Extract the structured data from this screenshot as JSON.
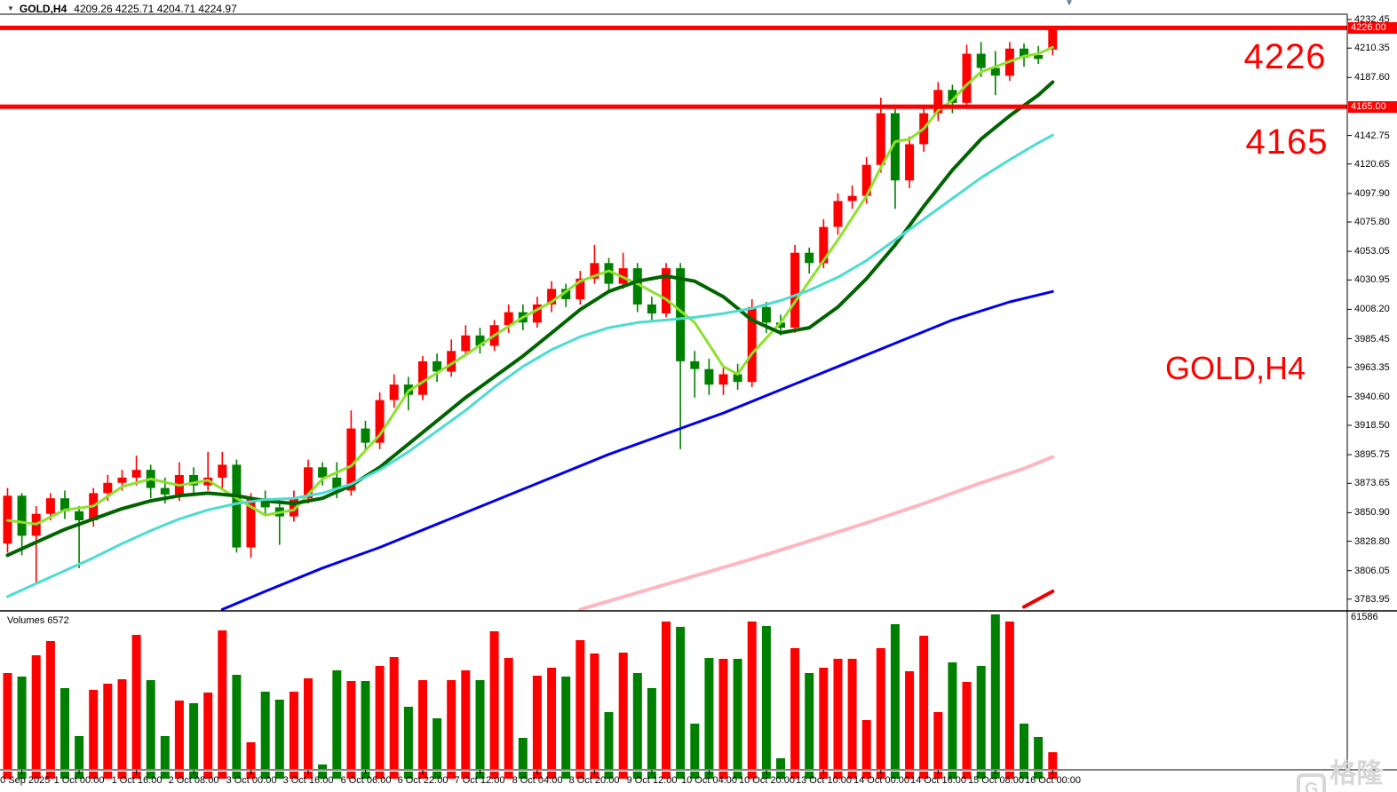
{
  "window": {
    "dropdown_icon": "triangle-down-icon",
    "title_symbol": "GOLD,H4",
    "title_ohlc": "4209.26 4225.71 4204.71 4224.97"
  },
  "volume_pane": {
    "label": "Volumes 6572",
    "axis_max_label": "61586"
  },
  "annotations": {
    "upper_level_label": "4226",
    "lower_level_label": "4165",
    "watermark_symbol": "GOLD,H4",
    "brand_watermark": "格隆汇",
    "brand_logo_glyph": "G"
  },
  "colors": {
    "up": "#ff0000",
    "down": "#008000",
    "level_line": "#ff0000",
    "tag_bg": "#ff0000",
    "tag_text": "#ffffff",
    "axis_text": "#000000",
    "ma_fast": "#8ce12d",
    "ma_mid": "#006400",
    "ma_slow": "#4cdcd2",
    "ma_long": "#0000ee",
    "ma_pink": "#ffb6c1",
    "ma_red": "#ee0000"
  },
  "chart_data": {
    "type": "candlestick",
    "symbol": "GOLD",
    "timeframe": "H4",
    "title": "GOLD,H4 4209.26 4225.71 4204.71 4224.97",
    "last_bar_ohlc": {
      "open": 4209.26,
      "high": 4225.71,
      "low": 4204.71,
      "close": 4224.97
    },
    "last_volume": 6572,
    "levels": [
      {
        "price": 4226,
        "label": "4226"
      },
      {
        "price": 4165,
        "label": "4165"
      }
    ],
    "y_axis": {
      "ticks": [
        4232.45,
        4210.35,
        4187.6,
        4142.75,
        4120.65,
        4097.9,
        4075.8,
        4053.05,
        4030.95,
        4008.2,
        3985.45,
        3963.35,
        3940.6,
        3918.5,
        3895.75,
        3873.65,
        3850.9,
        3828.8,
        3806.05,
        3783.95
      ],
      "tagged_prices": [
        4226.0,
        4165.0
      ],
      "volume_max": 61586
    },
    "x_axis": {
      "labels": [
        "30 Sep 2025",
        "1 Oct 00:00",
        "1 Oct 16:00",
        "2 Oct 08:00",
        "3 Oct 00:00",
        "3 Oct 16:00",
        "6 Oct 06:00",
        "6 Oct 22:00",
        "7 Oct 12:00",
        "8 Oct 04:00",
        "8 Oct 20:00",
        "9 Oct 12:00",
        "10 Oct 04:00",
        "10 Oct 20:00",
        "13 Oct 10:00",
        "14 Oct 00:00",
        "14 Oct 16:00",
        "15 Oct 08:00",
        "16 Oct 00:00"
      ],
      "first_label_candle_index": 1,
      "candles_per_label": 4
    },
    "ohlc": [
      [
        3827,
        3870,
        3820,
        3864
      ],
      [
        3864,
        3866,
        3818,
        3833
      ],
      [
        3833,
        3856,
        3797,
        3850
      ],
      [
        3850,
        3866,
        3845,
        3862
      ],
      [
        3862,
        3868,
        3846,
        3852
      ],
      [
        3852,
        3856,
        3808,
        3845
      ],
      [
        3845,
        3870,
        3840,
        3866
      ],
      [
        3866,
        3880,
        3860,
        3874
      ],
      [
        3874,
        3884,
        3868,
        3878
      ],
      [
        3878,
        3895,
        3872,
        3884
      ],
      [
        3884,
        3888,
        3862,
        3870
      ],
      [
        3870,
        3878,
        3858,
        3865
      ],
      [
        3865,
        3890,
        3860,
        3880
      ],
      [
        3880,
        3886,
        3866,
        3872
      ],
      [
        3872,
        3898,
        3868,
        3878
      ],
      [
        3878,
        3898,
        3868,
        3888
      ],
      [
        3888,
        3892,
        3820,
        3824
      ],
      [
        3824,
        3866,
        3816,
        3862
      ],
      [
        3862,
        3868,
        3850,
        3855
      ],
      [
        3855,
        3860,
        3826,
        3848
      ],
      [
        3848,
        3868,
        3844,
        3862
      ],
      [
        3862,
        3892,
        3858,
        3886
      ],
      [
        3886,
        3890,
        3872,
        3878
      ],
      [
        3878,
        3890,
        3862,
        3868
      ],
      [
        3868,
        3930,
        3864,
        3916
      ],
      [
        3916,
        3922,
        3898,
        3905
      ],
      [
        3905,
        3944,
        3900,
        3938
      ],
      [
        3938,
        3958,
        3932,
        3950
      ],
      [
        3950,
        3956,
        3930,
        3942
      ],
      [
        3942,
        3972,
        3938,
        3968
      ],
      [
        3968,
        3974,
        3952,
        3960
      ],
      [
        3960,
        3985,
        3956,
        3976
      ],
      [
        3976,
        3996,
        3972,
        3988
      ],
      [
        3988,
        3994,
        3974,
        3980
      ],
      [
        3980,
        4000,
        3976,
        3996
      ],
      [
        3996,
        4012,
        3990,
        4006
      ],
      [
        4006,
        4012,
        3992,
        3998
      ],
      [
        3998,
        4018,
        3994,
        4012
      ],
      [
        4012,
        4030,
        4006,
        4024
      ],
      [
        4024,
        4028,
        4010,
        4016
      ],
      [
        4016,
        4038,
        4012,
        4032
      ],
      [
        4032,
        4058,
        4028,
        4044
      ],
      [
        4044,
        4048,
        4022,
        4028
      ],
      [
        4028,
        4052,
        4024,
        4040
      ],
      [
        4040,
        4044,
        4006,
        4012
      ],
      [
        4012,
        4018,
        4000,
        4005
      ],
      [
        4005,
        4044,
        4002,
        4040
      ],
      [
        4040,
        4044,
        3900,
        3968
      ],
      [
        3968,
        3976,
        3940,
        3962
      ],
      [
        3962,
        3970,
        3942,
        3950
      ],
      [
        3950,
        3964,
        3942,
        3958
      ],
      [
        3958,
        3966,
        3946,
        3952
      ],
      [
        3952,
        4016,
        3948,
        4010
      ],
      [
        4010,
        4014,
        3990,
        3998
      ],
      [
        3998,
        4004,
        3988,
        3994
      ],
      [
        3994,
        4058,
        3990,
        4052
      ],
      [
        4052,
        4056,
        4036,
        4044
      ],
      [
        4044,
        4078,
        4040,
        4072
      ],
      [
        4072,
        4098,
        4066,
        4092
      ],
      [
        4092,
        4104,
        4086,
        4096
      ],
      [
        4096,
        4126,
        4090,
        4120
      ],
      [
        4120,
        4172,
        4114,
        4160
      ],
      [
        4160,
        4166,
        4086,
        4108
      ],
      [
        4108,
        4142,
        4102,
        4136
      ],
      [
        4136,
        4166,
        4130,
        4160
      ],
      [
        4160,
        4184,
        4154,
        4178
      ],
      [
        4178,
        4182,
        4160,
        4168
      ],
      [
        4168,
        4213,
        4164,
        4206
      ],
      [
        4206,
        4215,
        4188,
        4195
      ],
      [
        4195,
        4208,
        4174,
        4189
      ],
      [
        4189,
        4215,
        4185,
        4210
      ],
      [
        4210,
        4214,
        4196,
        4203
      ],
      [
        4205,
        4212,
        4198,
        4202
      ],
      [
        4209.26,
        4225.71,
        4204.71,
        4224.97
      ]
    ],
    "volumes": [
      37800,
      36400,
      44800,
      50400,
      31850,
      12950,
      31150,
      33600,
      35350,
      52850,
      35000,
      12950,
      26950,
      25900,
      30100,
      54600,
      37100,
      10500,
      30450,
      27300,
      30450,
      35700,
      1750,
      38850,
      34650,
      34650,
      40600,
      44100,
      24500,
      35000,
      19950,
      35000,
      38850,
      35000,
      54250,
      43750,
      12250,
      36750,
      39900,
      36400,
      50750,
      45500,
      22400,
      45850,
      37800,
      31850,
      58100,
      56000,
      17850,
      43750,
      43400,
      43400,
      58100,
      56350,
      4200,
      47600,
      37800,
      39900,
      43400,
      43400,
      19250,
      47600,
      57050,
      38500,
      52500,
      22400,
      42000,
      34300,
      40600,
      60900,
      58100,
      17850,
      12600,
      6572
    ],
    "ma_lines": [
      {
        "name": "ma-fast-lightgreen",
        "color": "#8ce12d",
        "width": 3,
        "points": [
          [
            0,
            3845
          ],
          [
            2,
            3842
          ],
          [
            4,
            3853
          ],
          [
            6,
            3856
          ],
          [
            8,
            3871
          ],
          [
            10,
            3877
          ],
          [
            12,
            3872
          ],
          [
            14,
            3876
          ],
          [
            16,
            3862
          ],
          [
            18,
            3849
          ],
          [
            20,
            3853
          ],
          [
            22,
            3877
          ],
          [
            24,
            3887
          ],
          [
            26,
            3911
          ],
          [
            28,
            3945
          ],
          [
            30,
            3959
          ],
          [
            32,
            3973
          ],
          [
            34,
            3988
          ],
          [
            36,
            4002
          ],
          [
            38,
            4014
          ],
          [
            40,
            4030
          ],
          [
            42,
            4038
          ],
          [
            44,
            4028
          ],
          [
            46,
            4016
          ],
          [
            48,
            3998
          ],
          [
            50,
            3964
          ],
          [
            51,
            3958
          ],
          [
            52,
            3974
          ],
          [
            54,
            3998
          ],
          [
            56,
            4030
          ],
          [
            58,
            4062
          ],
          [
            60,
            4096
          ],
          [
            61,
            4118
          ],
          [
            62,
            4138
          ],
          [
            63,
            4140
          ],
          [
            64,
            4148
          ],
          [
            65,
            4162
          ],
          [
            66,
            4170
          ],
          [
            67,
            4182
          ],
          [
            68,
            4192
          ],
          [
            69,
            4196
          ],
          [
            70,
            4200
          ],
          [
            71,
            4204
          ],
          [
            72,
            4206
          ],
          [
            73,
            4211
          ]
        ]
      },
      {
        "name": "ma-mid-darkgreen",
        "color": "#006400",
        "width": 4,
        "points": [
          [
            0,
            3818
          ],
          [
            2,
            3828
          ],
          [
            4,
            3838
          ],
          [
            6,
            3846
          ],
          [
            8,
            3854
          ],
          [
            10,
            3860
          ],
          [
            12,
            3864
          ],
          [
            14,
            3866
          ],
          [
            16,
            3864
          ],
          [
            18,
            3860
          ],
          [
            20,
            3858
          ],
          [
            22,
            3862
          ],
          [
            24,
            3872
          ],
          [
            26,
            3886
          ],
          [
            28,
            3904
          ],
          [
            30,
            3922
          ],
          [
            32,
            3940
          ],
          [
            34,
            3956
          ],
          [
            36,
            3972
          ],
          [
            38,
            3990
          ],
          [
            40,
            4008
          ],
          [
            42,
            4022
          ],
          [
            44,
            4030
          ],
          [
            46,
            4034
          ],
          [
            48,
            4030
          ],
          [
            50,
            4018
          ],
          [
            52,
            4000
          ],
          [
            54,
            3990
          ],
          [
            56,
            3994
          ],
          [
            58,
            4010
          ],
          [
            60,
            4032
          ],
          [
            62,
            4058
          ],
          [
            64,
            4088
          ],
          [
            66,
            4116
          ],
          [
            68,
            4140
          ],
          [
            70,
            4158
          ],
          [
            72,
            4174
          ],
          [
            73,
            4184
          ]
        ]
      },
      {
        "name": "ma-slow-cyan",
        "color": "#4cdcd2",
        "width": 3,
        "points": [
          [
            0,
            3786
          ],
          [
            2,
            3796
          ],
          [
            4,
            3806
          ],
          [
            6,
            3816
          ],
          [
            8,
            3827
          ],
          [
            10,
            3837
          ],
          [
            12,
            3846
          ],
          [
            14,
            3853
          ],
          [
            16,
            3858
          ],
          [
            18,
            3861
          ],
          [
            20,
            3862
          ],
          [
            22,
            3866
          ],
          [
            24,
            3873
          ],
          [
            26,
            3884
          ],
          [
            28,
            3898
          ],
          [
            30,
            3914
          ],
          [
            32,
            3930
          ],
          [
            34,
            3948
          ],
          [
            36,
            3964
          ],
          [
            38,
            3977
          ],
          [
            40,
            3987
          ],
          [
            42,
            3994
          ],
          [
            44,
            3998
          ],
          [
            46,
            4000
          ],
          [
            48,
            4002
          ],
          [
            50,
            4005
          ],
          [
            52,
            4009
          ],
          [
            54,
            4015
          ],
          [
            56,
            4023
          ],
          [
            58,
            4033
          ],
          [
            60,
            4046
          ],
          [
            62,
            4062
          ],
          [
            64,
            4078
          ],
          [
            66,
            4094
          ],
          [
            68,
            4110
          ],
          [
            70,
            4124
          ],
          [
            72,
            4137
          ],
          [
            73,
            4143
          ]
        ]
      },
      {
        "name": "ma-long-blue",
        "color": "#0000ee",
        "width": 3,
        "points": [
          [
            15,
            3776
          ],
          [
            18,
            3790
          ],
          [
            22,
            3808
          ],
          [
            26,
            3824
          ],
          [
            30,
            3842
          ],
          [
            34,
            3860
          ],
          [
            38,
            3878
          ],
          [
            42,
            3896
          ],
          [
            46,
            3912
          ],
          [
            50,
            3928
          ],
          [
            54,
            3946
          ],
          [
            58,
            3964
          ],
          [
            62,
            3982
          ],
          [
            66,
            4000
          ],
          [
            70,
            4014
          ],
          [
            73,
            4022
          ]
        ]
      },
      {
        "name": "ma-pink",
        "color": "#ffb6c1",
        "width": 4,
        "points": [
          [
            40,
            3776
          ],
          [
            44,
            3789
          ],
          [
            48,
            3802
          ],
          [
            52,
            3815
          ],
          [
            56,
            3829
          ],
          [
            60,
            3843
          ],
          [
            64,
            3858
          ],
          [
            68,
            3874
          ],
          [
            71,
            3885
          ],
          [
            73,
            3894
          ]
        ]
      },
      {
        "name": "ma-red",
        "color": "#ee0000",
        "width": 4,
        "points": [
          [
            71,
            3778
          ],
          [
            73,
            3790
          ]
        ]
      }
    ]
  }
}
